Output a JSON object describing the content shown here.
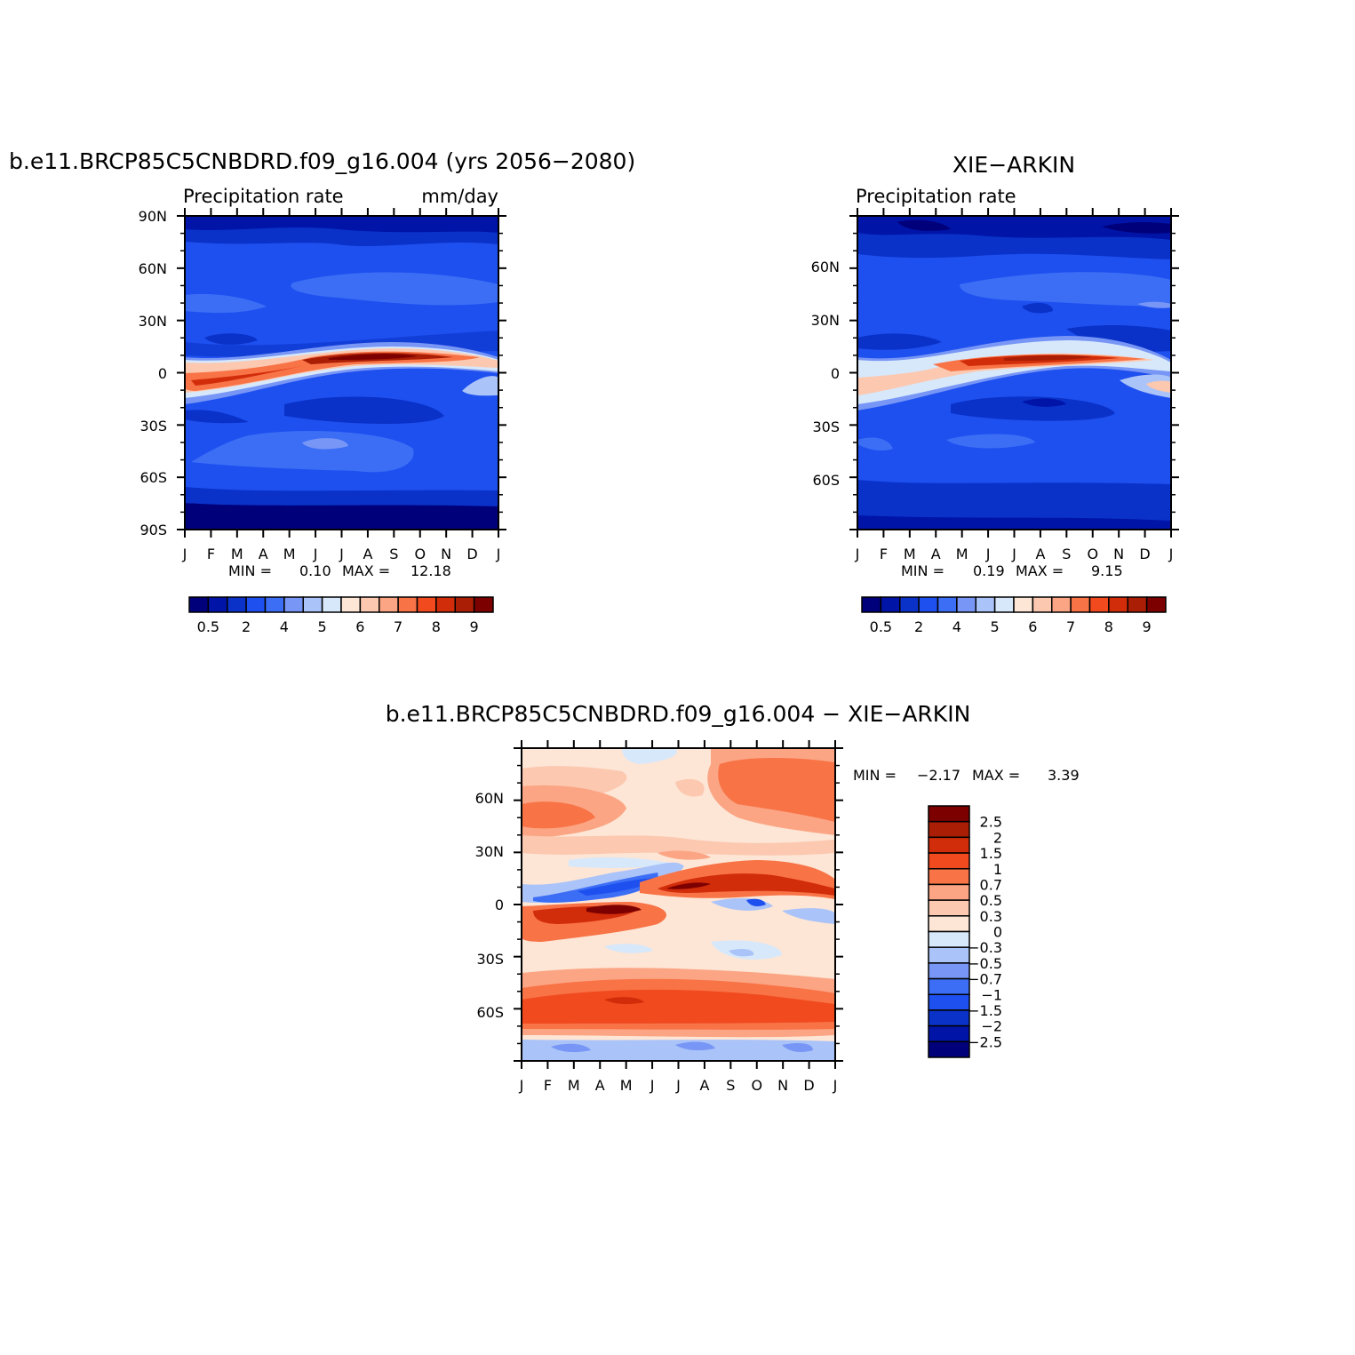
{
  "chart_data": [
    {
      "type": "heatmap",
      "title": "b.e11.BRCP85C5CNBDRD.f09_g16.004 (yrs 2056−2080)",
      "subtitle_left": "Precipitation rate",
      "subtitle_right": "mm/day",
      "x_ticks": [
        "J",
        "F",
        "M",
        "A",
        "M",
        "J",
        "J",
        "A",
        "S",
        "O",
        "N",
        "D",
        "J"
      ],
      "y_ticks": [
        "90N",
        "60N",
        "30N",
        "0",
        "30S",
        "60S",
        "90S"
      ],
      "ylim": [
        -90,
        90
      ],
      "stats": {
        "min_label": "MIN =",
        "min": "0.10",
        "max_label": "MAX =",
        "max": "12.18"
      },
      "colorbar": {
        "orientation": "horizontal",
        "labels": [
          "0.5",
          "2",
          "4",
          "5",
          "6",
          "7",
          "8",
          "9"
        ],
        "colors": [
          "#00007a",
          "#0014a8",
          "#0a32c8",
          "#1e50f0",
          "#3c6ef5",
          "#7896f5",
          "#aac3f8",
          "#d7e8fb",
          "#fde6d6",
          "#fcc8b0",
          "#fba584",
          "#f87346",
          "#f04a1e",
          "#d22d0a",
          "#aa1e05",
          "#7d0000"
        ]
      }
    },
    {
      "type": "heatmap",
      "title": "XIE−ARKIN",
      "subtitle_left": "Precipitation rate",
      "x_ticks": [
        "J",
        "F",
        "M",
        "A",
        "M",
        "J",
        "J",
        "A",
        "S",
        "O",
        "N",
        "D",
        "J"
      ],
      "y_ticks": [
        "60N",
        "30N",
        "0",
        "30S",
        "60S"
      ],
      "stats": {
        "min_label": "MIN =",
        "min": "0.19",
        "max_label": "MAX =",
        "max": "9.15"
      },
      "colorbar": {
        "orientation": "horizontal",
        "labels": [
          "0.5",
          "2",
          "4",
          "5",
          "6",
          "7",
          "8",
          "9"
        ],
        "colors": [
          "#00007a",
          "#0014a8",
          "#0a32c8",
          "#1e50f0",
          "#3c6ef5",
          "#7896f5",
          "#aac3f8",
          "#d7e8fb",
          "#fde6d6",
          "#fcc8b0",
          "#fba584",
          "#f87346",
          "#f04a1e",
          "#d22d0a",
          "#aa1e05",
          "#7d0000"
        ]
      }
    },
    {
      "type": "heatmap",
      "title": "b.e11.BRCP85C5CNBDRD.f09_g16.004 − XIE−ARKIN",
      "x_ticks": [
        "J",
        "F",
        "M",
        "A",
        "M",
        "J",
        "J",
        "A",
        "S",
        "O",
        "N",
        "D",
        "J"
      ],
      "y_ticks": [
        "60N",
        "30N",
        "0",
        "30S",
        "60S"
      ],
      "stats": {
        "min_label": "MIN =",
        "min": "−2.17",
        "max_label": "MAX =",
        "max": "3.39"
      },
      "colorbar": {
        "orientation": "vertical",
        "labels": [
          "2.5",
          "2",
          "1.5",
          "1",
          "0.7",
          "0.5",
          "0.3",
          "0",
          "−0.3",
          "−0.5",
          "−0.7",
          "−1",
          "−1.5",
          "−2",
          "−2.5"
        ],
        "colors": [
          "#7d0000",
          "#aa1e05",
          "#d22d0a",
          "#f04a1e",
          "#f87346",
          "#fba584",
          "#fcc8b0",
          "#fde6d6",
          "#d7e8fb",
          "#aac3f8",
          "#7896f5",
          "#3c6ef5",
          "#1e50f0",
          "#0a32c8",
          "#0014a8",
          "#00007a"
        ]
      }
    }
  ]
}
